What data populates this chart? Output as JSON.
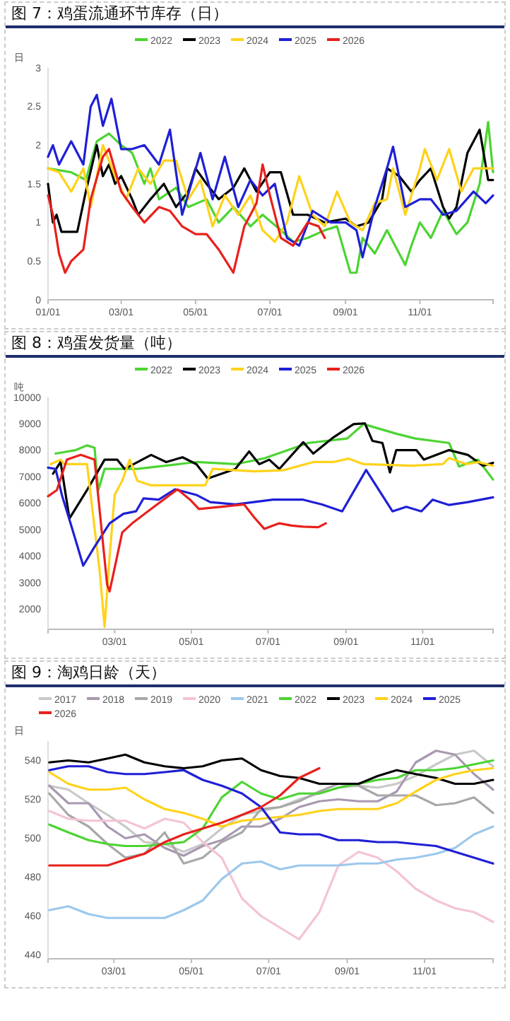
{
  "chart_data": [
    {
      "type": "line",
      "title": "图 7：鸡蛋流通环节库存（日）",
      "ylabel": "日",
      "legend": "top",
      "xlim": [
        "--01-01",
        "--12-31"
      ],
      "xticks": [
        {
          "value": "--01-01",
          "label": "01/01"
        },
        {
          "value": "--03-01",
          "label": "03/01"
        },
        {
          "value": "--05-01",
          "label": "05/01"
        },
        {
          "value": "--07-01",
          "label": "07/01"
        },
        {
          "value": "--09-01",
          "label": "09/01"
        },
        {
          "value": "--11-01",
          "label": "11/01"
        }
      ],
      "ylim": [
        0,
        3
      ],
      "yticks": [
        0,
        0.5,
        1,
        1.5,
        2,
        2.5,
        3
      ],
      "series": [
        {
          "name": "2022",
          "color": "#4cd432",
          "x": [
            "--01-01",
            "--01-20",
            "--02-01",
            "--02-10",
            "--02-20",
            "--03-01",
            "--03-10",
            "--03-20",
            "--03-25",
            "--04-01",
            "--04-15",
            "--04-25",
            "--05-10",
            "--05-20",
            "--06-01",
            "--06-15",
            "--06-25",
            "--07-10",
            "--07-20",
            "--08-01",
            "--08-15",
            "--08-25",
            "--09-05",
            "--09-10",
            "--09-15",
            "--09-25",
            "--10-05",
            "--10-20",
            "--10-25",
            "--11-01",
            "--11-10",
            "--11-20",
            "--12-01",
            "--12-10",
            "--12-20",
            "--12-27",
            "--12-31"
          ],
          "values": [
            1.7,
            1.65,
            1.55,
            2.05,
            2.15,
            2.0,
            1.9,
            1.5,
            1.7,
            1.3,
            1.45,
            1.2,
            1.3,
            1.0,
            1.2,
            0.95,
            1.1,
            0.9,
            0.75,
            0.8,
            0.9,
            0.95,
            0.35,
            0.35,
            0.8,
            0.6,
            0.9,
            0.45,
            0.7,
            1.0,
            0.8,
            1.15,
            0.85,
            1.0,
            1.5,
            2.3,
            1.65
          ]
        },
        {
          "name": "2023",
          "color": "#000000",
          "x": [
            "--01-01",
            "--01-05",
            "--01-08",
            "--01-12",
            "--01-25",
            "--02-01",
            "--02-10",
            "--02-15",
            "--02-20",
            "--02-25",
            "--03-01",
            "--03-10",
            "--03-15",
            "--03-25",
            "--04-05",
            "--04-15",
            "--04-25",
            "--05-01",
            "--05-10",
            "--05-20",
            "--06-01",
            "--06-10",
            "--06-20",
            "--07-01",
            "--07-10",
            "--07-20",
            "--08-01",
            "--08-15",
            "--09-01",
            "--09-10",
            "--09-20",
            "--10-01",
            "--10-05",
            "--10-15",
            "--10-25",
            "--11-01",
            "--11-10",
            "--11-20",
            "--11-25",
            "--12-01",
            "--12-10",
            "--12-20",
            "--12-27",
            "--12-31"
          ],
          "values": [
            1.5,
            1.0,
            1.1,
            0.88,
            0.88,
            1.4,
            2.0,
            1.6,
            1.75,
            1.5,
            1.6,
            1.3,
            1.1,
            1.3,
            1.5,
            1.2,
            1.4,
            1.7,
            1.5,
            1.3,
            1.45,
            1.7,
            1.4,
            1.65,
            1.65,
            1.1,
            1.1,
            1.0,
            1.05,
            0.95,
            1.0,
            1.3,
            1.7,
            1.6,
            1.4,
            1.55,
            1.7,
            1.2,
            1.05,
            1.2,
            1.9,
            2.2,
            1.55,
            1.55
          ]
        },
        {
          "name": "2024",
          "color": "#ffd21a",
          "x": [
            "--01-01",
            "--01-10",
            "--01-20",
            "--01-30",
            "--02-05",
            "--02-15",
            "--02-25",
            "--03-05",
            "--03-15",
            "--03-25",
            "--04-05",
            "--04-15",
            "--04-25",
            "--05-05",
            "--05-15",
            "--05-25",
            "--06-05",
            "--06-15",
            "--06-25",
            "--07-05",
            "--07-15",
            "--07-25",
            "--08-05",
            "--08-15",
            "--08-25",
            "--09-05",
            "--09-15",
            "--09-25",
            "--10-05",
            "--10-10",
            "--10-20",
            "--11-01",
            "--11-05",
            "--11-15",
            "--11-25",
            "--12-05",
            "--12-15",
            "--12-31"
          ],
          "values": [
            1.7,
            1.65,
            1.4,
            1.7,
            1.2,
            2.0,
            1.6,
            1.3,
            1.7,
            1.5,
            1.8,
            1.8,
            1.3,
            1.55,
            0.95,
            1.35,
            1.1,
            1.35,
            0.9,
            0.75,
            1.0,
            1.6,
            1.1,
            0.95,
            1.4,
            1.0,
            0.9,
            1.25,
            1.3,
            1.7,
            1.1,
            1.7,
            1.95,
            1.55,
            1.95,
            1.4,
            1.7,
            1.7
          ]
        },
        {
          "name": "2025",
          "color": "#1f1fd6",
          "x": [
            "--01-01",
            "--01-05",
            "--01-10",
            "--01-20",
            "--01-30",
            "--02-05",
            "--02-10",
            "--02-15",
            "--02-22",
            "--03-01",
            "--03-10",
            "--03-20",
            "--04-01",
            "--04-10",
            "--04-20",
            "--05-05",
            "--05-15",
            "--05-25",
            "--06-05",
            "--06-15",
            "--06-25",
            "--07-05",
            "--07-15",
            "--07-25",
            "--08-05",
            "--08-20",
            "--09-01",
            "--09-10",
            "--09-15",
            "--09-25",
            "--10-05",
            "--10-10",
            "--10-20",
            "--11-01",
            "--11-10",
            "--11-20",
            "--12-01",
            "--12-15",
            "--12-25",
            "--12-31"
          ],
          "values": [
            1.85,
            2.0,
            1.75,
            2.05,
            1.75,
            2.5,
            2.65,
            2.25,
            2.6,
            1.95,
            1.95,
            2.0,
            1.75,
            2.2,
            1.1,
            1.9,
            1.3,
            1.85,
            1.2,
            1.55,
            1.35,
            1.5,
            0.8,
            0.7,
            1.15,
            1.0,
            1.0,
            0.9,
            0.55,
            1.2,
            1.7,
            1.98,
            1.2,
            1.3,
            1.3,
            1.1,
            1.15,
            1.4,
            1.25,
            1.35
          ]
        },
        {
          "name": "2026",
          "color": "#e8201c",
          "x": [
            "--01-01",
            "--01-05",
            "--01-10",
            "--01-15",
            "--01-20",
            "--01-30",
            "--02-05",
            "--02-15",
            "--02-20",
            "--03-01",
            "--03-10",
            "--03-20",
            "--04-01",
            "--04-10",
            "--04-20",
            "--05-01",
            "--05-10",
            "--05-20",
            "--06-01",
            "--06-10",
            "--06-20",
            "--06-25",
            "--07-01",
            "--07-10",
            "--07-20",
            "--08-01",
            "--08-10",
            "--08-15"
          ],
          "values": [
            1.35,
            1.1,
            0.6,
            0.35,
            0.5,
            0.65,
            1.3,
            1.85,
            1.95,
            1.4,
            1.2,
            1.0,
            1.2,
            1.15,
            0.95,
            0.85,
            0.85,
            0.65,
            0.35,
            0.95,
            1.25,
            1.75,
            1.35,
            0.8,
            0.7,
            1.0,
            0.95,
            0.8
          ]
        }
      ]
    },
    {
      "type": "line",
      "title": "图 8：鸡蛋发货量（吨）",
      "ylabel": "吨",
      "legend": "top",
      "xlim": [
        "--01-08",
        "--12-27"
      ],
      "xticks": [
        {
          "value": "--03-01",
          "label": "03/01"
        },
        {
          "value": "--05-01",
          "label": "05/01"
        },
        {
          "value": "--07-01",
          "label": "07/01"
        },
        {
          "value": "--09-01",
          "label": "09/01"
        },
        {
          "value": "--11-01",
          "label": "11/01"
        }
      ],
      "ylim": [
        1250,
        10000
      ],
      "yticks": [
        2000,
        3000,
        4000,
        5000,
        6000,
        7000,
        8000,
        9000,
        10000
      ],
      "series": [
        {
          "name": "2022",
          "color": "#4cd432",
          "x": [
            "--01-14",
            "--01-30",
            "--02-08",
            "--02-14",
            "--02-17",
            "--02-22",
            "--03-19",
            "--05-05",
            "--06-05",
            "--06-28",
            "--08-02",
            "--09-02",
            "--09-15",
            "--10-11",
            "--10-26",
            "--11-22",
            "--11-30",
            "--12-15",
            "--12-27"
          ],
          "values": [
            7880,
            8010,
            8190,
            8100,
            6500,
            7300,
            7300,
            7560,
            7480,
            7700,
            8280,
            8450,
            8990,
            8630,
            8450,
            8280,
            7390,
            7650,
            6900
          ]
        },
        {
          "name": "2023",
          "color": "#000000",
          "x": [
            "--01-12",
            "--01-18",
            "--01-25",
            "--02-08",
            "--02-22",
            "--03-03",
            "--03-09",
            "--03-30",
            "--04-11",
            "--04-24",
            "--05-05",
            "--05-14",
            "--06-05",
            "--06-16",
            "--06-24",
            "--07-02",
            "--07-10",
            "--07-29",
            "--08-06",
            "--08-22",
            "--09-07",
            "--09-16",
            "--09-22",
            "--09-30",
            "--10-06",
            "--10-11",
            "--10-27",
            "--11-02",
            "--11-22",
            "--12-07",
            "--12-19",
            "--12-27"
          ],
          "values": [
            7120,
            7560,
            5430,
            6500,
            7650,
            7650,
            7300,
            7830,
            7560,
            7740,
            7480,
            6940,
            7300,
            7960,
            7480,
            7650,
            7300,
            8310,
            7880,
            8490,
            8990,
            9020,
            8360,
            8280,
            7170,
            8010,
            8010,
            7650,
            8010,
            7830,
            7420,
            7530
          ]
        },
        {
          "name": "2024",
          "color": "#ffd21a",
          "x": [
            "--01-10",
            "--01-18",
            "--01-21",
            "--02-08",
            "--02-18",
            "--02-22",
            "--02-26",
            "--03-01",
            "--03-07",
            "--03-13",
            "--03-19",
            "--03-30",
            "--05-12",
            "--05-18",
            "--06-20",
            "--07-13",
            "--08-06",
            "--08-22",
            "--09-03",
            "--09-15",
            "--10-24",
            "--11-17",
            "--11-22",
            "--12-06",
            "--12-15",
            "--12-27"
          ],
          "values": [
            7480,
            7650,
            7480,
            7480,
            3480,
            1340,
            4000,
            6320,
            6850,
            7650,
            6850,
            6680,
            6680,
            7300,
            7210,
            7250,
            7560,
            7560,
            7690,
            7480,
            7420,
            7480,
            7710,
            7480,
            7560,
            7420
          ]
        },
        {
          "name": "2025",
          "color": "#1f1fd6",
          "x": [
            "--01-08",
            "--01-14",
            "--01-19",
            "--01-27",
            "--02-05",
            "--02-14",
            "--02-26",
            "--03-08",
            "--03-18",
            "--03-24",
            "--04-05",
            "--04-18",
            "--05-05",
            "--05-16",
            "--06-05",
            "--07-05",
            "--07-29",
            "--08-13",
            "--08-29",
            "--09-17",
            "--10-08",
            "--10-19",
            "--10-31",
            "--11-09",
            "--11-22",
            "--12-07",
            "--12-27"
          ],
          "values": [
            7350,
            7300,
            6320,
            5080,
            3650,
            4360,
            5250,
            5610,
            5700,
            6190,
            6140,
            6530,
            6320,
            6050,
            5960,
            6140,
            6140,
            5960,
            5700,
            7260,
            5700,
            5870,
            5700,
            6140,
            5940,
            6050,
            6230
          ]
        },
        {
          "name": "2026",
          "color": "#e8201c",
          "x": [
            "--01-08",
            "--01-15",
            "--01-23",
            "--02-03",
            "--02-14",
            "--02-24",
            "--02-26",
            "--03-07",
            "--03-15",
            "--03-30",
            "--04-20",
            "--04-30",
            "--05-07",
            "--05-27",
            "--06-12",
            "--06-20",
            "--06-28",
            "--07-10",
            "--07-20",
            "--07-29",
            "--08-10",
            "--08-16"
          ],
          "values": [
            6270,
            6500,
            7650,
            7830,
            7650,
            2940,
            2680,
            4900,
            5250,
            5790,
            6530,
            6140,
            5790,
            5880,
            5960,
            5470,
            5040,
            5250,
            5160,
            5120,
            5100,
            5250
          ]
        }
      ]
    },
    {
      "type": "line",
      "title": "图 9：淘鸡日龄（天）",
      "ylabel": "日",
      "legend": "top",
      "xlim": [
        "--01-09",
        "--12-25"
      ],
      "xticks": [
        {
          "value": "--03-01",
          "label": "03/01"
        },
        {
          "value": "--05-01",
          "label": "05/01"
        },
        {
          "value": "--07-01",
          "label": "07/01"
        },
        {
          "value": "--09-01",
          "label": "09/01"
        },
        {
          "value": "--11-01",
          "label": "11/01"
        }
      ],
      "ylim": [
        438,
        550
      ],
      "yticks": [
        440,
        460,
        480,
        500,
        520,
        540
      ],
      "x": [
        "--01-10",
        "--01-25",
        "--02-10",
        "--02-25",
        "--03-10",
        "--03-25",
        "--04-10",
        "--04-25",
        "--05-10",
        "--05-25",
        "--06-10",
        "--06-25",
        "--07-10",
        "--07-25",
        "--08-10",
        "--08-25",
        "--09-10",
        "--09-25",
        "--10-10",
        "--10-25",
        "--11-10",
        "--11-25",
        "--12-10",
        "--12-25"
      ],
      "series": [
        {
          "name": "2017",
          "color": "#c8c8c8",
          "values": [
            527,
            525,
            518,
            512,
            506,
            498,
            497,
            493,
            497,
            505,
            512,
            514,
            516,
            520,
            523,
            526,
            527,
            526,
            528,
            532,
            538,
            543,
            545,
            537
          ]
        },
        {
          "name": "2018",
          "color": "#a898b0",
          "values": [
            527,
            518,
            518,
            506,
            500,
            502,
            495,
            491,
            496,
            499,
            506,
            506,
            510,
            516,
            519,
            520,
            519,
            519,
            524,
            539,
            545,
            543,
            533,
            525
          ]
        },
        {
          "name": "2019",
          "color": "#a8a8a8",
          "values": [
            523,
            512,
            506,
            497,
            490,
            492,
            503,
            487,
            490,
            498,
            503,
            515,
            516,
            519,
            524,
            528,
            527,
            522,
            522,
            522,
            517,
            518,
            521,
            513
          ]
        },
        {
          "name": "2020",
          "color": "#f4c4d4",
          "values": [
            514,
            510,
            509,
            509,
            509,
            505,
            510,
            508,
            498,
            490,
            469,
            460,
            454,
            448,
            462,
            486,
            493,
            490,
            483,
            474,
            468,
            464,
            462,
            457
          ]
        },
        {
          "name": "2021",
          "color": "#9cc8ec",
          "values": [
            463,
            465,
            461,
            459,
            459,
            459,
            459,
            463,
            468,
            479,
            487,
            488,
            484,
            486,
            486,
            486,
            487,
            487,
            489,
            490,
            492,
            495,
            502,
            506
          ]
        },
        {
          "name": "2022",
          "color": "#4cd432",
          "values": [
            507,
            503,
            499,
            497,
            496,
            496,
            497,
            498,
            505,
            521,
            529,
            523,
            520,
            523,
            523,
            526,
            528,
            530,
            531,
            535,
            535,
            536,
            538,
            540
          ]
        },
        {
          "name": "2023",
          "color": "#000000",
          "values": [
            539,
            540,
            539,
            541,
            543,
            539,
            537,
            536,
            537,
            540,
            541,
            535,
            532,
            531,
            528,
            528,
            528,
            532,
            535,
            533,
            531,
            528,
            528,
            530
          ]
        },
        {
          "name": "2024",
          "color": "#ffd21a",
          "values": [
            534,
            528,
            525,
            525,
            526,
            520,
            515,
            513,
            510,
            506,
            509,
            510,
            511,
            512,
            514,
            515,
            515,
            515,
            518,
            524,
            530,
            533,
            535,
            536
          ]
        },
        {
          "name": "2025",
          "color": "#1f1fd6",
          "values": [
            535,
            537,
            537,
            534,
            533,
            533,
            534,
            535,
            530,
            527,
            523,
            516,
            503,
            502,
            502,
            499,
            499,
            498,
            498,
            497,
            496,
            493,
            490,
            487
          ]
        },
        {
          "name": "2026",
          "color": "#e8201c",
          "values": [
            486,
            486,
            486,
            486,
            489,
            492,
            498,
            502,
            505,
            508,
            512,
            516,
            522,
            531,
            536,
            null,
            null,
            null,
            null,
            null,
            null,
            null,
            null,
            null
          ]
        }
      ]
    }
  ]
}
